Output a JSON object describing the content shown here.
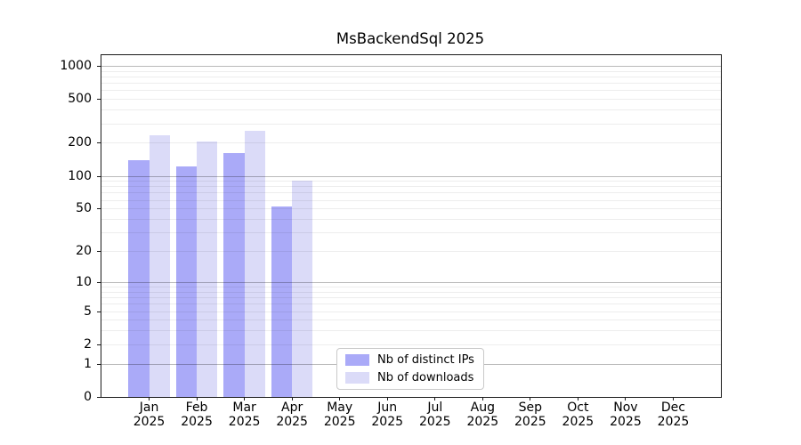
{
  "figure": {
    "background": "#ffffff"
  },
  "chart_data": {
    "type": "bar",
    "title": "MsBackendSql 2025",
    "categories": [
      "Jan",
      "Feb",
      "Mar",
      "Apr",
      "May",
      "Jun",
      "Jul",
      "Aug",
      "Sep",
      "Oct",
      "Nov",
      "Dec"
    ],
    "category_year": "2025",
    "series": [
      {
        "name": "Nb of distinct IPs",
        "color": "#aaaaf8",
        "values": [
          140,
          122,
          160,
          52,
          null,
          null,
          null,
          null,
          null,
          null,
          null,
          null
        ]
      },
      {
        "name": "Nb of downloads",
        "color": "#dbdbf8",
        "values": [
          235,
          205,
          258,
          91,
          null,
          null,
          null,
          null,
          null,
          null,
          null,
          null
        ]
      }
    ],
    "xlabel": "",
    "ylabel": "",
    "yscale": "log10(value+1)",
    "ylim": [
      0,
      1250
    ],
    "y_ticks": [
      1000,
      500,
      200,
      100,
      50,
      20,
      10,
      5,
      2,
      1,
      0
    ],
    "grid": "horizontal; faint minor lines at 2-9 per decade, darker major lines at powers of 10",
    "legend_position": "inside bottom-center",
    "colors": {
      "grid_minor": "rgba(0,0,0,0.07)",
      "grid_major": "rgba(0,0,0,0.27)",
      "spine": "#1a1a1a",
      "text": "#000000",
      "legend_border": "#c9c9c9"
    }
  }
}
